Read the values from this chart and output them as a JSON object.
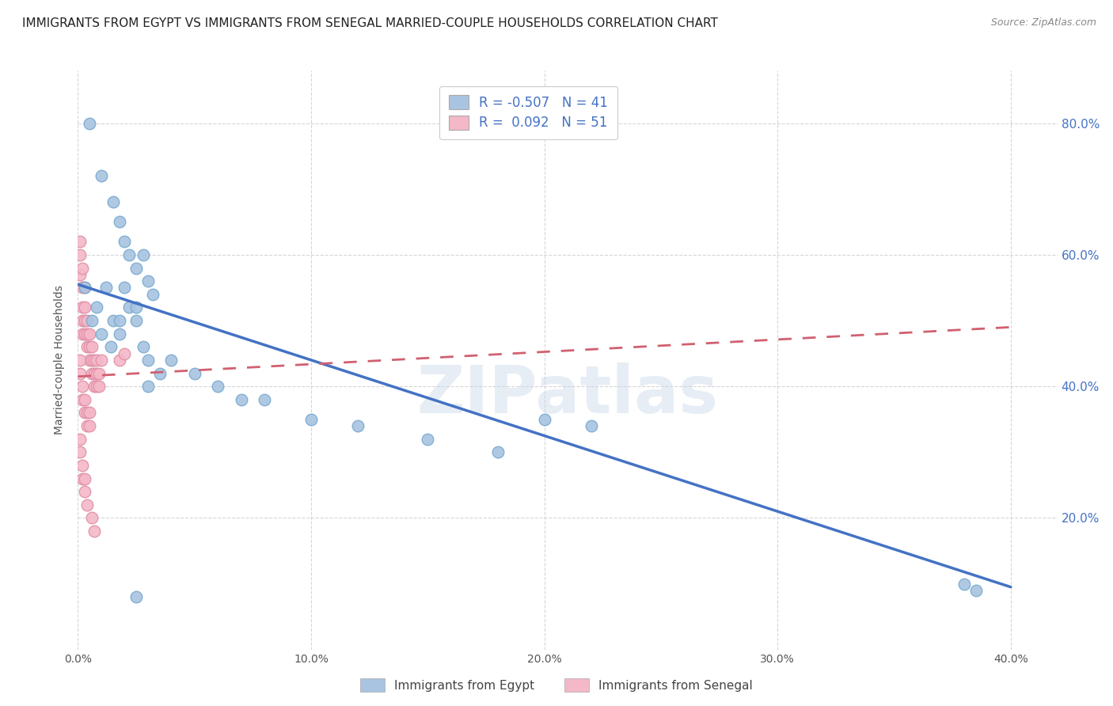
{
  "title": "IMMIGRANTS FROM EGYPT VS IMMIGRANTS FROM SENEGAL MARRIED-COUPLE HOUSEHOLDS CORRELATION CHART",
  "source": "Source: ZipAtlas.com",
  "ylabel": "Married-couple Households",
  "xlim": [
    0.0,
    0.42
  ],
  "ylim": [
    0.0,
    0.88
  ],
  "xticks": [
    0.0,
    0.1,
    0.2,
    0.3,
    0.4
  ],
  "yticks": [
    0.0,
    0.2,
    0.4,
    0.6,
    0.8
  ],
  "xticklabels": [
    "0.0%",
    "10.0%",
    "20.0%",
    "30.0%",
    "40.0%"
  ],
  "yticklabels": [
    "",
    "20.0%",
    "40.0%",
    "60.0%",
    "80.0%"
  ],
  "egypt_color": "#a8c4e0",
  "senegal_color": "#f4b8c8",
  "egypt_edge_color": "#7aaad0",
  "senegal_edge_color": "#e090a8",
  "egypt_line_color": "#4472c4",
  "senegal_line_color": "#d06070",
  "egypt_R": -0.507,
  "egypt_N": 41,
  "senegal_R": 0.092,
  "senegal_N": 51,
  "watermark": "ZIPatlas",
  "egypt_scatter_x": [
    0.005,
    0.01,
    0.015,
    0.018,
    0.02,
    0.022,
    0.025,
    0.028,
    0.03,
    0.032,
    0.008,
    0.012,
    0.015,
    0.018,
    0.022,
    0.025,
    0.028,
    0.03,
    0.035,
    0.04,
    0.05,
    0.06,
    0.07,
    0.08,
    0.1,
    0.12,
    0.15,
    0.18,
    0.2,
    0.22,
    0.003,
    0.006,
    0.01,
    0.014,
    0.018,
    0.02,
    0.025,
    0.03,
    0.38,
    0.385,
    0.025
  ],
  "egypt_scatter_y": [
    0.8,
    0.72,
    0.68,
    0.65,
    0.62,
    0.6,
    0.58,
    0.6,
    0.56,
    0.54,
    0.52,
    0.55,
    0.5,
    0.48,
    0.52,
    0.5,
    0.46,
    0.44,
    0.42,
    0.44,
    0.42,
    0.4,
    0.38,
    0.38,
    0.35,
    0.34,
    0.32,
    0.3,
    0.35,
    0.34,
    0.55,
    0.5,
    0.48,
    0.46,
    0.5,
    0.55,
    0.52,
    0.4,
    0.1,
    0.09,
    0.08
  ],
  "senegal_scatter_x": [
    0.001,
    0.001,
    0.001,
    0.002,
    0.002,
    0.002,
    0.002,
    0.002,
    0.003,
    0.003,
    0.003,
    0.003,
    0.004,
    0.004,
    0.004,
    0.005,
    0.005,
    0.005,
    0.006,
    0.006,
    0.006,
    0.007,
    0.007,
    0.007,
    0.008,
    0.008,
    0.008,
    0.009,
    0.009,
    0.01,
    0.001,
    0.001,
    0.002,
    0.002,
    0.003,
    0.003,
    0.004,
    0.004,
    0.005,
    0.005,
    0.001,
    0.001,
    0.002,
    0.002,
    0.003,
    0.003,
    0.004,
    0.006,
    0.007,
    0.018,
    0.02
  ],
  "senegal_scatter_y": [
    0.62,
    0.6,
    0.57,
    0.58,
    0.55,
    0.52,
    0.5,
    0.48,
    0.55,
    0.52,
    0.5,
    0.48,
    0.5,
    0.48,
    0.46,
    0.48,
    0.46,
    0.44,
    0.46,
    0.44,
    0.42,
    0.44,
    0.42,
    0.4,
    0.44,
    0.42,
    0.4,
    0.42,
    0.4,
    0.44,
    0.44,
    0.42,
    0.4,
    0.38,
    0.38,
    0.36,
    0.36,
    0.34,
    0.36,
    0.34,
    0.32,
    0.3,
    0.28,
    0.26,
    0.26,
    0.24,
    0.22,
    0.2,
    0.18,
    0.44,
    0.45
  ],
  "egypt_trend_x": [
    0.0,
    0.4
  ],
  "egypt_trend_y": [
    0.555,
    0.095
  ],
  "senegal_trend_x": [
    0.0,
    0.4
  ],
  "senegal_trend_y": [
    0.415,
    0.49
  ],
  "background_color": "#ffffff",
  "grid_color": "#cccccc",
  "title_fontsize": 11,
  "axis_fontsize": 10,
  "tick_fontsize": 10,
  "legend_label_egypt": "R = -0.507   N = 41",
  "legend_label_senegal": "R =  0.092   N = 51",
  "bottom_label_egypt": "Immigrants from Egypt",
  "bottom_label_senegal": "Immigrants from Senegal"
}
